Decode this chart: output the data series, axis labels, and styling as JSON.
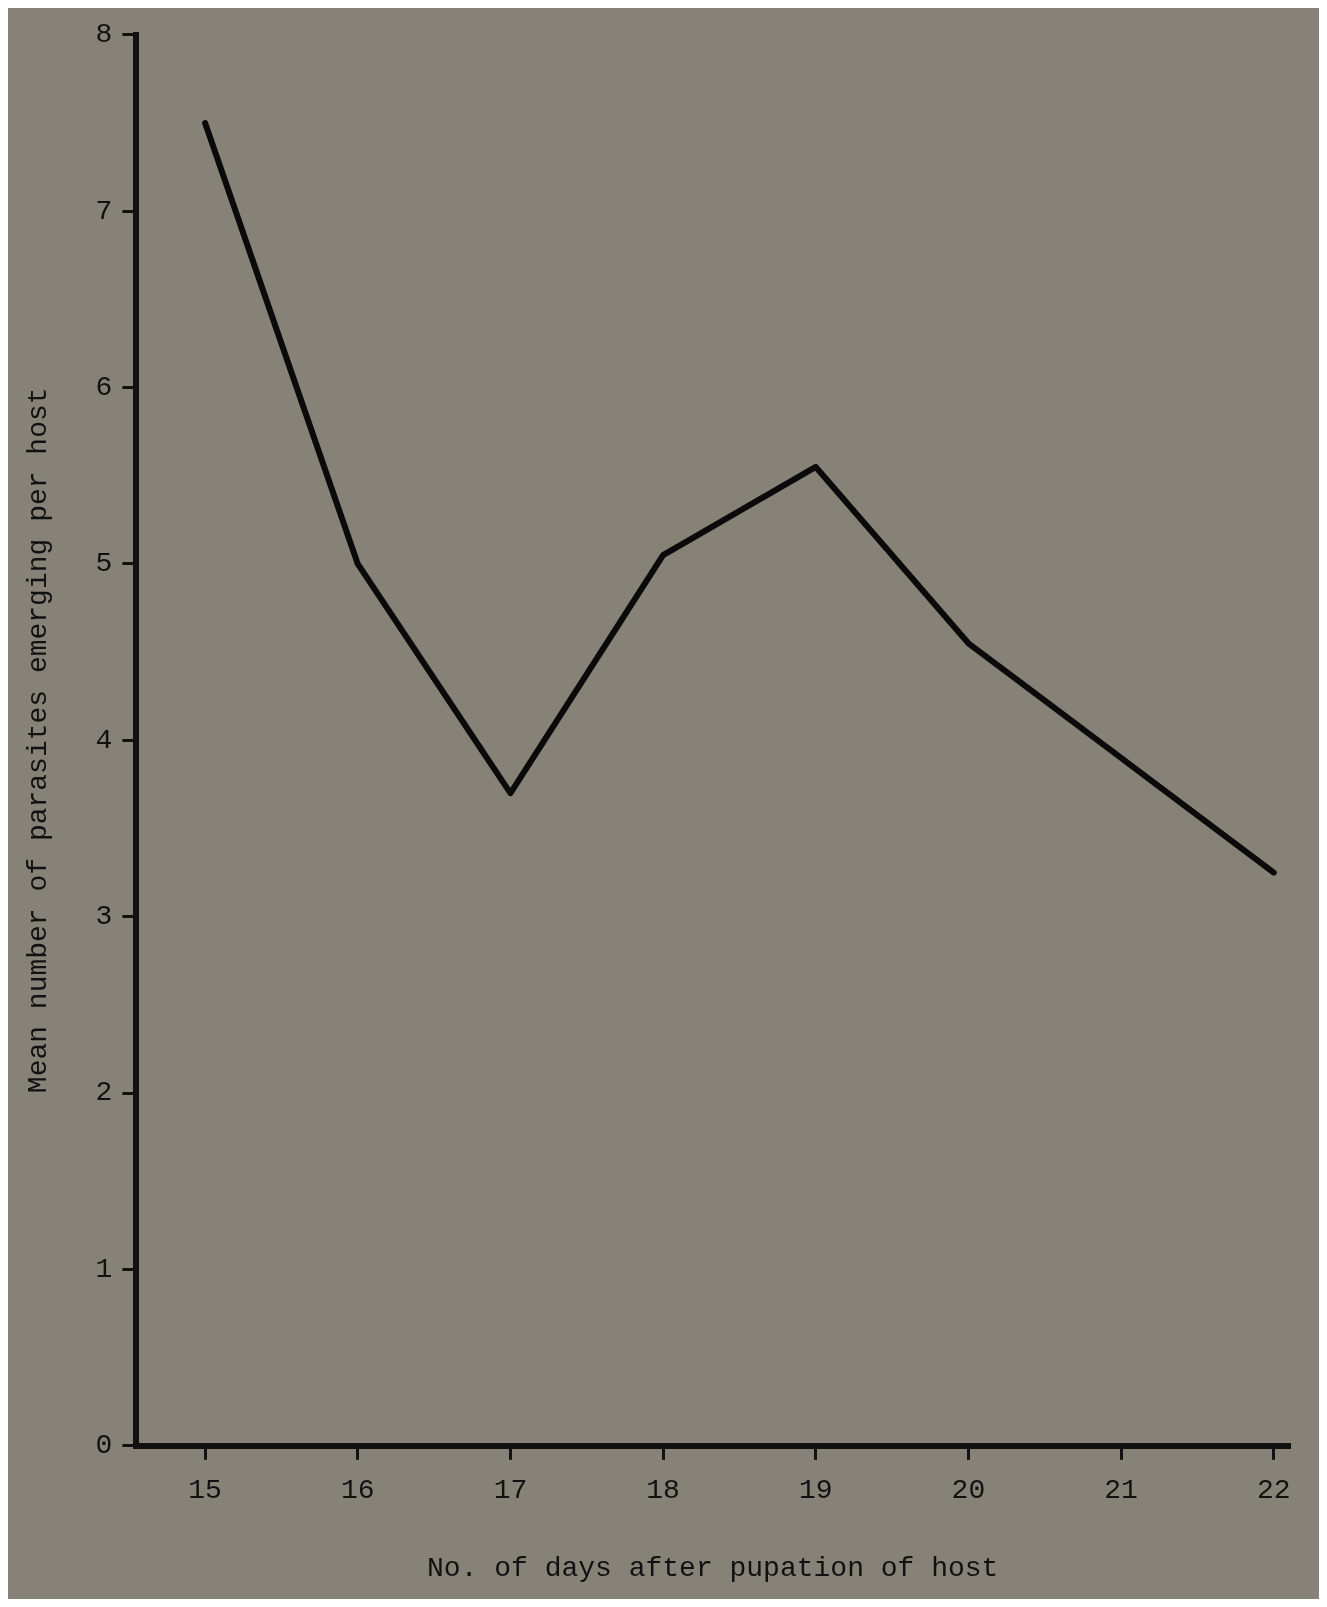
{
  "chart_data": {
    "type": "line",
    "xlabel": "No. of days after pupation of host",
    "ylabel": "Mean number of parasites emerging per host",
    "x": [
      15,
      16,
      17,
      18,
      19,
      20,
      21,
      22
    ],
    "series": [
      {
        "color": "#0a0a0a",
        "values": [
          7.5,
          5.0,
          3.7,
          5.05,
          5.55,
          4.55,
          3.9,
          3.25
        ]
      }
    ],
    "xlim": [
      14.55,
      22.1
    ],
    "xticks": [
      15,
      16,
      17,
      18,
      19,
      20,
      21,
      22
    ],
    "ylim": [
      0,
      8
    ],
    "yticks": [
      0,
      1,
      2,
      3,
      4,
      5,
      6,
      7,
      8
    ],
    "grid": false,
    "legend": false,
    "marker": "none",
    "line_style": "solid"
  }
}
